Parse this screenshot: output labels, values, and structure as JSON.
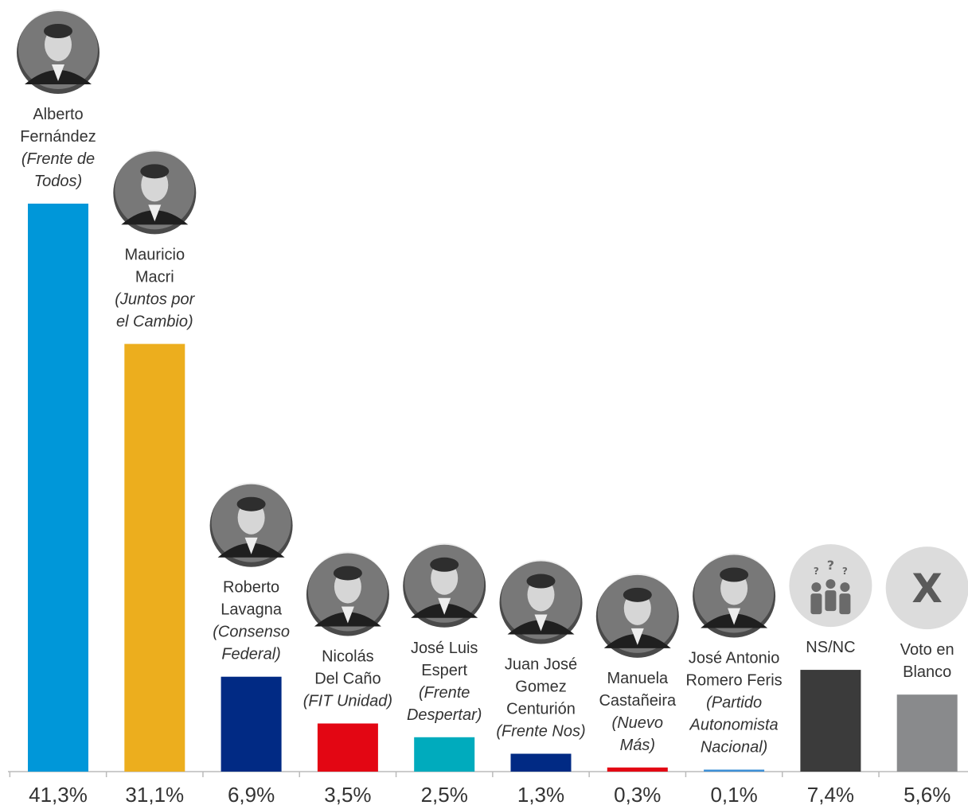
{
  "chart_data": {
    "type": "bar",
    "categories": [
      "Alberto Fernández (Frente de Todos)",
      "Mauricio Macri (Juntos por el Cambio)",
      "Roberto Lavagna (Consenso Federal)",
      "Nicolás Del Caño (FIT Unidad)",
      "José Luis Espert (Frente Despertar)",
      "Juan José Gomez Centurión (Frente Nos)",
      "Manuela Castañeira (Nuevo Más)",
      "José Antonio Romero Feris (Partido Autonomista Nacional)",
      "NS/NC",
      "Voto en Blanco"
    ],
    "values": [
      41.3,
      31.1,
      6.9,
      3.5,
      2.5,
      1.3,
      0.3,
      0.1,
      7.4,
      5.6
    ],
    "value_labels": [
      "41,3%",
      "31,1%",
      "6,9%",
      "3,5%",
      "2,5%",
      "1,3%",
      "0,3%",
      "0,1%",
      "7,4%",
      "5,6%"
    ],
    "candidates": [
      {
        "name_lines": [
          "Alberto",
          "Fernández"
        ],
        "party_lines": [
          "(Frente de",
          "Todos)"
        ],
        "color": "#0097d9",
        "icon": "photo-portrait"
      },
      {
        "name_lines": [
          "Mauricio",
          "Macri"
        ],
        "party_lines": [
          "(Juntos por",
          "el Cambio)"
        ],
        "color": "#ecae1e",
        "icon": "photo-portrait"
      },
      {
        "name_lines": [
          "Roberto",
          "Lavagna"
        ],
        "party_lines": [
          "(Consenso",
          "Federal)"
        ],
        "color": "#012a84",
        "icon": "photo-portrait"
      },
      {
        "name_lines": [
          "Nicolás",
          "Del Caño"
        ],
        "party_lines": [
          "(FIT Unidad)"
        ],
        "color": "#e30613",
        "icon": "photo-portrait"
      },
      {
        "name_lines": [
          "José Luis",
          "Espert"
        ],
        "party_lines": [
          "(Frente",
          "Despertar)"
        ],
        "color": "#00abbd",
        "icon": "photo-portrait"
      },
      {
        "name_lines": [
          "Juan José",
          "Gomez",
          "Centurión"
        ],
        "party_lines": [
          "(Frente Nos)"
        ],
        "color": "#012a84",
        "icon": "photo-portrait"
      },
      {
        "name_lines": [
          "Manuela",
          "Castañeira"
        ],
        "party_lines": [
          "(Nuevo",
          "Más)"
        ],
        "color": "#e30613",
        "icon": "photo-portrait"
      },
      {
        "name_lines": [
          "José Antonio",
          "Romero Feris"
        ],
        "party_lines": [
          "(Partido",
          "Autonomista",
          "Nacional)"
        ],
        "color": "#3d8fd6",
        "icon": "photo-portrait"
      },
      {
        "name_lines": [
          "NS/NC"
        ],
        "party_lines": [],
        "color": "#3b3b3b",
        "icon": "people-question-icon"
      },
      {
        "name_lines": [
          "Voto en",
          "Blanco"
        ],
        "party_lines": [],
        "color": "#898a8c",
        "icon": "x-icon",
        "icon_text": "X"
      }
    ],
    "axis_color": "#bbbbbb"
  }
}
